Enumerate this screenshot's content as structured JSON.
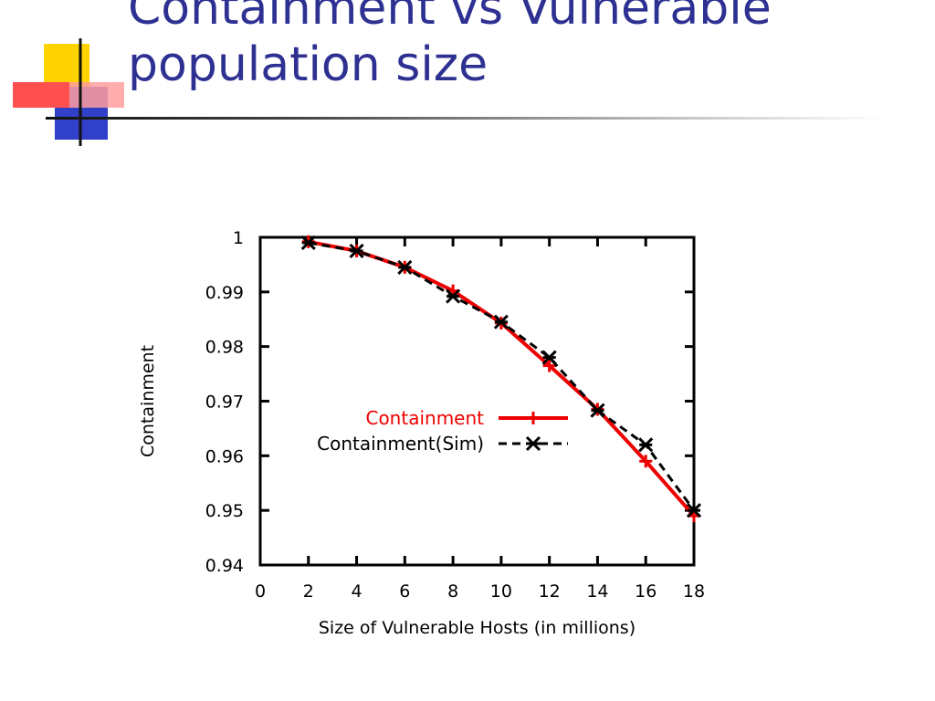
{
  "slide": {
    "title_lines": [
      "Containment vs Vulnerable",
      "population size"
    ],
    "title_color": "#2e3192"
  },
  "chart_data": {
    "type": "line",
    "title": "",
    "xlabel": "Size of Vulnerable Hosts (in millions)",
    "ylabel": "Containment",
    "xlim": [
      0,
      18
    ],
    "ylim": [
      0.94,
      1
    ],
    "xticks": [
      0,
      2,
      4,
      6,
      8,
      10,
      12,
      14,
      16,
      18
    ],
    "yticks": [
      0.94,
      0.95,
      0.96,
      0.97,
      0.98,
      0.99,
      1
    ],
    "ytick_labels": [
      "0.94",
      "0.95",
      "0.96",
      "0.97",
      "0.98",
      "0.99",
      "1"
    ],
    "grid": false,
    "legend_position": "center",
    "series": [
      {
        "name": "Containment",
        "color": "#ee0000",
        "style": "solid",
        "marker": "plus",
        "x": [
          2,
          4,
          6,
          8,
          10,
          12,
          14,
          16,
          18
        ],
        "y": [
          0.9992,
          0.9975,
          0.9945,
          0.9902,
          0.9843,
          0.9765,
          0.9685,
          0.959,
          0.949
        ]
      },
      {
        "name": "Containment(Sim)",
        "color": "#000000",
        "style": "dashed",
        "marker": "cross",
        "x": [
          2,
          4,
          6,
          8,
          10,
          12,
          14,
          16,
          18
        ],
        "y": [
          0.999,
          0.9975,
          0.9945,
          0.9892,
          0.9845,
          0.978,
          0.9683,
          0.962,
          0.95
        ]
      }
    ]
  }
}
